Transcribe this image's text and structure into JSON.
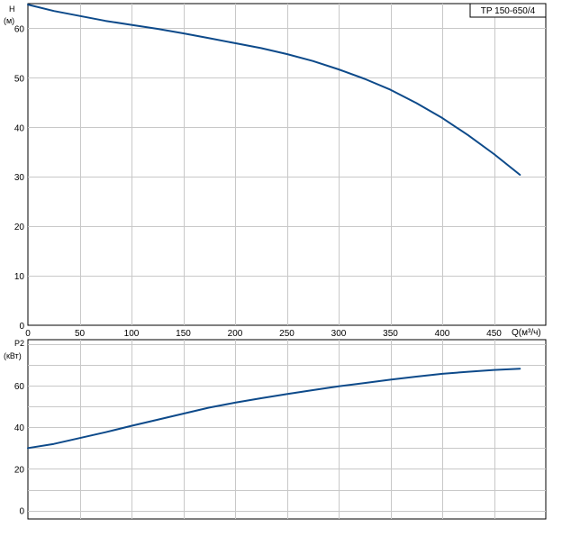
{
  "legend_label": "TP 150-650/4",
  "chart_data": [
    {
      "type": "line",
      "panel": "head",
      "ylabel": "H",
      "yunit": "(м)",
      "xlabel": "Q(м³/ч)",
      "xlim": [
        0,
        500
      ],
      "ylim": [
        0,
        65
      ],
      "xticks": [
        0,
        50,
        100,
        150,
        200,
        250,
        300,
        350,
        400,
        450
      ],
      "yticks": [
        0,
        10,
        20,
        30,
        40,
        50,
        60
      ],
      "grid": true,
      "line_color": "#0d4a8a",
      "series": [
        {
          "x": [
            0,
            25,
            50,
            75,
            100,
            125,
            150,
            175,
            200,
            225,
            250,
            275,
            300,
            325,
            350,
            375,
            400,
            425,
            450,
            475
          ],
          "values": [
            64.8,
            63.5,
            62.5,
            61.5,
            60.7,
            59.9,
            59.0,
            58.0,
            57.0,
            56.0,
            54.8,
            53.4,
            51.7,
            49.8,
            47.6,
            44.9,
            41.9,
            38.4,
            34.6,
            30.4
          ]
        }
      ]
    },
    {
      "type": "line",
      "panel": "power",
      "ylabel": "P2",
      "yunit": "(кВт)",
      "xlim": [
        0,
        500
      ],
      "ylim": [
        -4,
        82
      ],
      "yticks": [
        0,
        20,
        40,
        60
      ],
      "grid": true,
      "line_color": "#0d4a8a",
      "series": [
        {
          "x": [
            0,
            25,
            50,
            75,
            100,
            125,
            150,
            175,
            200,
            225,
            250,
            275,
            300,
            325,
            350,
            375,
            400,
            425,
            450,
            475
          ],
          "values": [
            30.0,
            32.0,
            34.8,
            37.6,
            40.7,
            43.6,
            46.5,
            49.4,
            51.8,
            53.9,
            55.9,
            57.8,
            59.6,
            61.2,
            62.8,
            64.3,
            65.6,
            66.6,
            67.5,
            68.1
          ]
        }
      ]
    }
  ]
}
